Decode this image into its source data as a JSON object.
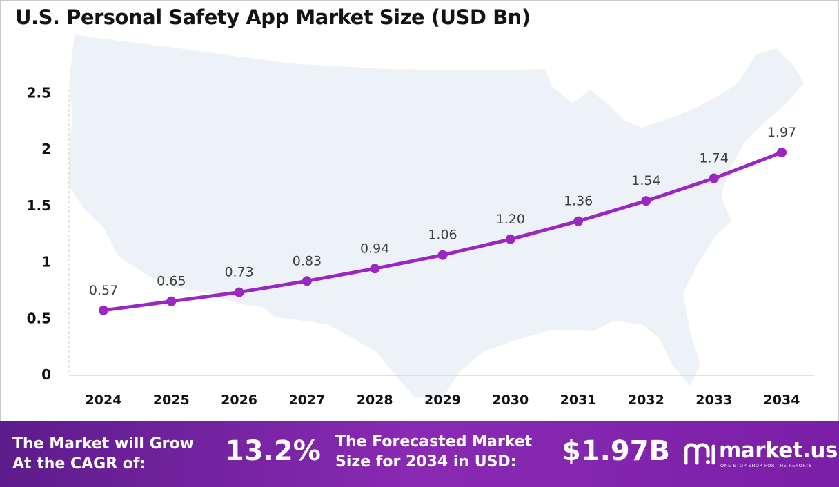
{
  "chart_data": {
    "type": "line",
    "title": "U.S. Personal Safety App Market Size (USD Bn)",
    "xlabel": "",
    "ylabel": "",
    "categories": [
      "2024",
      "2025",
      "2026",
      "2027",
      "2028",
      "2029",
      "2030",
      "2031",
      "2032",
      "2033",
      "2034"
    ],
    "values": [
      0.57,
      0.65,
      0.73,
      0.83,
      0.94,
      1.06,
      1.2,
      1.36,
      1.54,
      1.74,
      1.97
    ],
    "data_labels": [
      "0.57",
      "0.65",
      "0.73",
      "0.83",
      "0.94",
      "1.06",
      "1.20",
      "1.36",
      "1.54",
      "1.74",
      "1.97"
    ],
    "y_ticks": [
      "0",
      "0.5",
      "1",
      "1.5",
      "2",
      "2.5"
    ],
    "ylim": [
      0,
      2.5
    ],
    "grid": false,
    "legend": "none",
    "line_color": "#9b27c2",
    "background_image": "us-map-silhouette"
  },
  "banner": {
    "cagr_text_line1": "The Market will Grow",
    "cagr_text_line2": "At the CAGR of:",
    "cagr_value": "13.2%",
    "forecast_text_line1": "The Forecasted Market",
    "forecast_text_line2": "Size for 2034 in USD:",
    "forecast_value": "$1.97B",
    "logo_name": "market.us",
    "logo_tagline": "ONE STOP SHOP FOR THE REPORTS",
    "logo_icon": "market-us-logo-icon",
    "gradient_start": "#5d1c8c",
    "gradient_end": "#8a2ab3"
  }
}
